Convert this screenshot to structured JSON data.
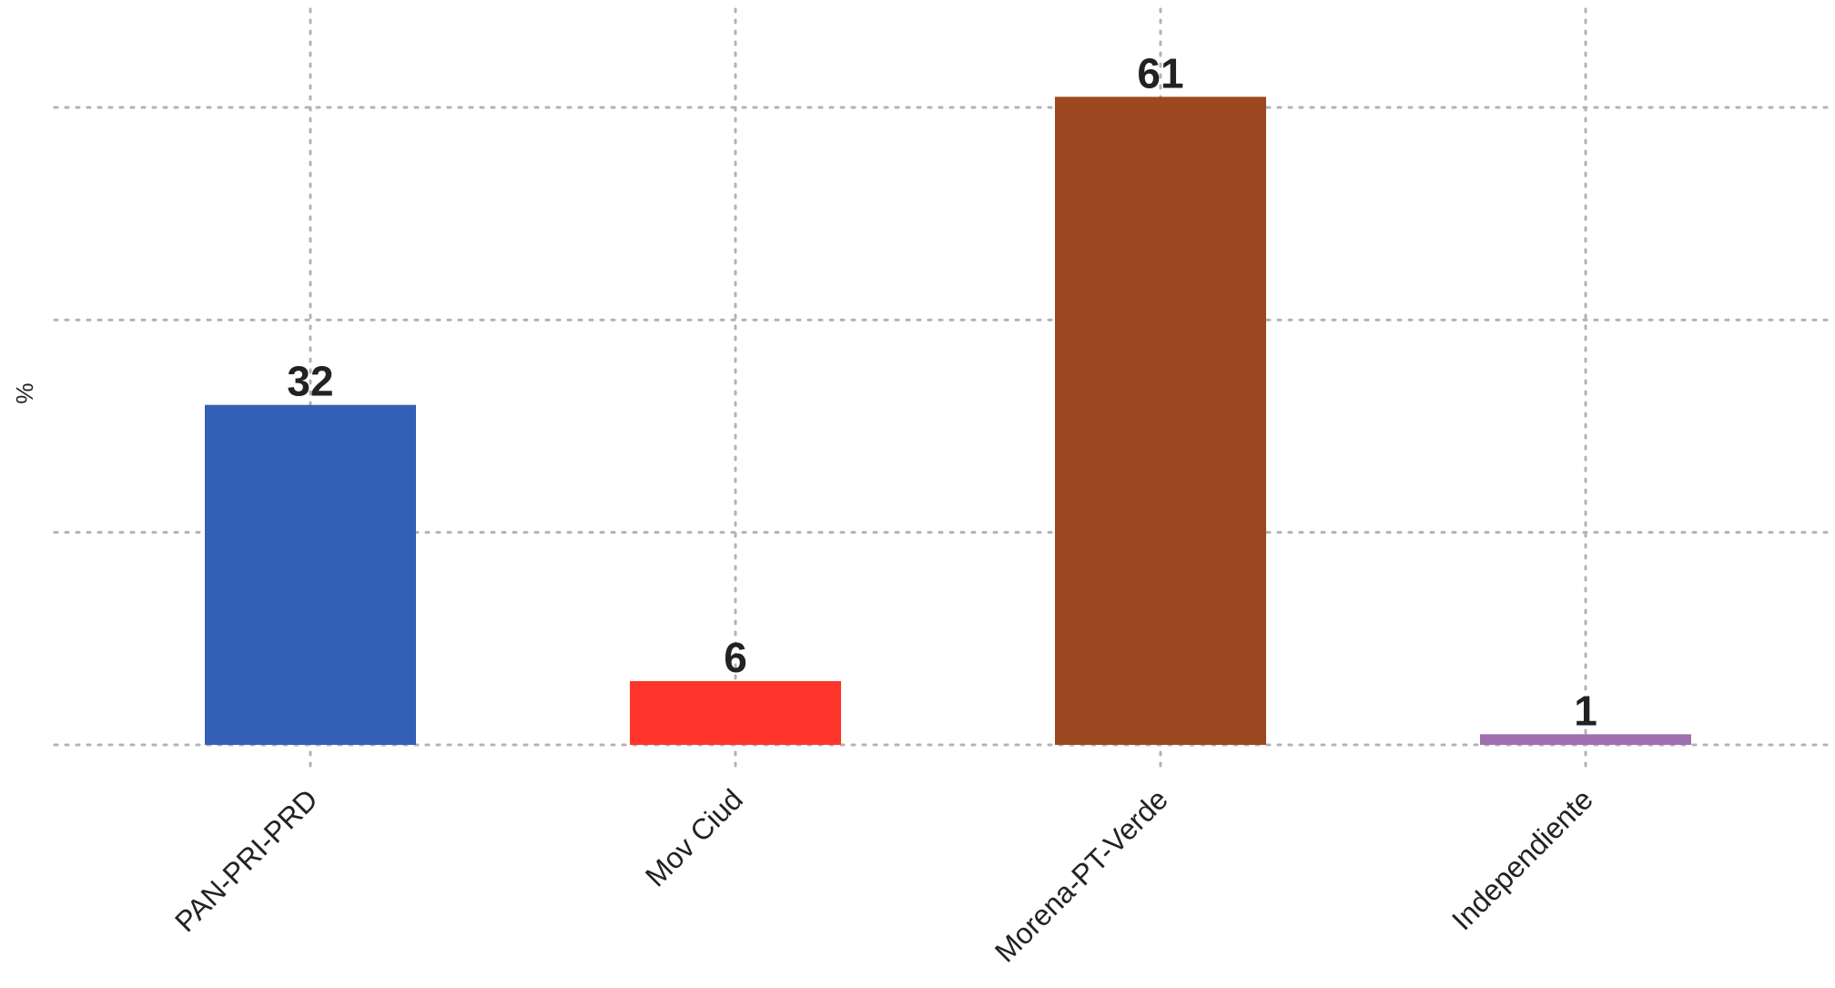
{
  "chart_data": {
    "type": "bar",
    "categories": [
      "PAN-PRI-PRD",
      "Mov Ciud",
      "Morena-PT-Verde",
      "Independiente"
    ],
    "values": [
      32,
      6,
      61,
      1
    ],
    "value_labels": [
      "32",
      "6",
      "61",
      "1"
    ],
    "colors": [
      "#335fb6",
      "#ff342a",
      "#9c4820",
      "#9f6fb0"
    ],
    "title": "",
    "xlabel": "",
    "ylabel": "%",
    "ylim": [
      0,
      60
    ],
    "yticks": [
      0,
      20,
      40,
      60
    ],
    "ytick_labels_visible": false,
    "grid": true,
    "grid_style": "dotted",
    "legend": "none"
  }
}
